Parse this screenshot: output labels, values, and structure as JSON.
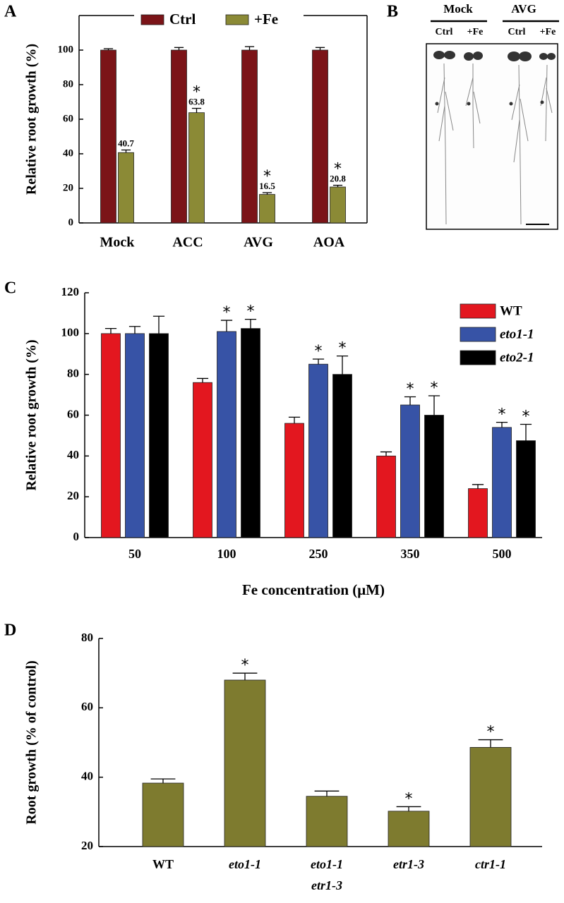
{
  "chart_data": [
    {
      "type": "bar",
      "panel_label": "A",
      "ylabel": "Relative root growth (%)",
      "categories": [
        "Mock",
        "ACC",
        "AVG",
        "AOA"
      ],
      "series": [
        {
          "name": "Ctrl",
          "color": "#7b1418",
          "values": [
            100,
            100,
            100,
            100
          ],
          "errors": [
            0.8,
            1.5,
            2,
            1.5
          ]
        },
        {
          "name": "+Fe",
          "color": "#8b8a36",
          "values": [
            40.7,
            63.8,
            16.5,
            20.8
          ],
          "errors": [
            1.5,
            2.5,
            1,
            1
          ],
          "data_labels": true
        }
      ],
      "annotations": [
        {
          "text": "*",
          "series": 1,
          "index": 1
        },
        {
          "text": "*",
          "series": 1,
          "index": 2
        },
        {
          "text": "*",
          "series": 1,
          "index": 3
        }
      ],
      "ylim": [
        0,
        120
      ],
      "yticks": [
        0,
        20,
        40,
        60,
        80,
        100
      ],
      "frame": "box",
      "legend": "top-center"
    },
    {
      "type": "bar",
      "panel_label": "C",
      "ylabel": "Relative root growth (%)",
      "xlabel": "Fe concentration (μM)",
      "categories": [
        "50",
        "100",
        "250",
        "350",
        "500"
      ],
      "series": [
        {
          "name": "WT",
          "color": "#e3171f",
          "values": [
            100,
            76,
            56,
            40,
            24
          ],
          "errors": [
            2.5,
            2,
            3,
            2,
            2
          ],
          "italic": false
        },
        {
          "name": "eto1-1",
          "color": "#3753a6",
          "values": [
            100,
            101,
            85,
            65,
            54
          ],
          "errors": [
            3.5,
            5.5,
            2.5,
            4,
            2.5
          ],
          "italic": true
        },
        {
          "name": "eto2-1",
          "color": "#000000",
          "values": [
            100,
            102.5,
            80,
            60,
            47.5
          ],
          "errors": [
            8.5,
            4.5,
            9,
            9.5,
            8
          ],
          "italic": true
        }
      ],
      "annotations": [
        {
          "text": "*",
          "series": 1,
          "index": 1
        },
        {
          "text": "*",
          "series": 2,
          "index": 1
        },
        {
          "text": "*",
          "series": 1,
          "index": 2
        },
        {
          "text": "*",
          "series": 2,
          "index": 2
        },
        {
          "text": "*",
          "series": 1,
          "index": 3
        },
        {
          "text": "*",
          "series": 2,
          "index": 3
        },
        {
          "text": "*",
          "series": 1,
          "index": 4
        },
        {
          "text": "*",
          "series": 2,
          "index": 4
        }
      ],
      "ylim": [
        0,
        120
      ],
      "yticks": [
        0,
        20,
        40,
        60,
        80,
        100,
        120
      ],
      "frame": "axes",
      "legend": "top-right"
    },
    {
      "type": "bar",
      "panel_label": "D",
      "ylabel": "Root growth (% of control)",
      "categories": [
        "WT",
        "eto1-1",
        [
          "eto1-1",
          "etr1-3"
        ],
        "etr1-3",
        "ctr1-1"
      ],
      "italic_categories": [
        false,
        true,
        true,
        true,
        true
      ],
      "color": "#7e7b2f",
      "values": [
        38.3,
        68,
        34.5,
        30.2,
        48.6
      ],
      "errors": [
        1.2,
        2,
        1.5,
        1.3,
        2.2
      ],
      "annotations": [
        {
          "text": "*",
          "index": 1
        },
        {
          "text": "*",
          "index": 3
        },
        {
          "text": "*",
          "index": 4
        }
      ],
      "ylim": [
        20,
        80
      ],
      "yticks": [
        20,
        40,
        60,
        80
      ],
      "frame": "axes"
    }
  ],
  "panel_b": {
    "label": "B",
    "groups": [
      {
        "name": "Mock",
        "columns": [
          "Ctrl",
          "+Fe"
        ]
      },
      {
        "name": "AVG",
        "columns": [
          "Ctrl",
          "+Fe"
        ]
      }
    ]
  }
}
